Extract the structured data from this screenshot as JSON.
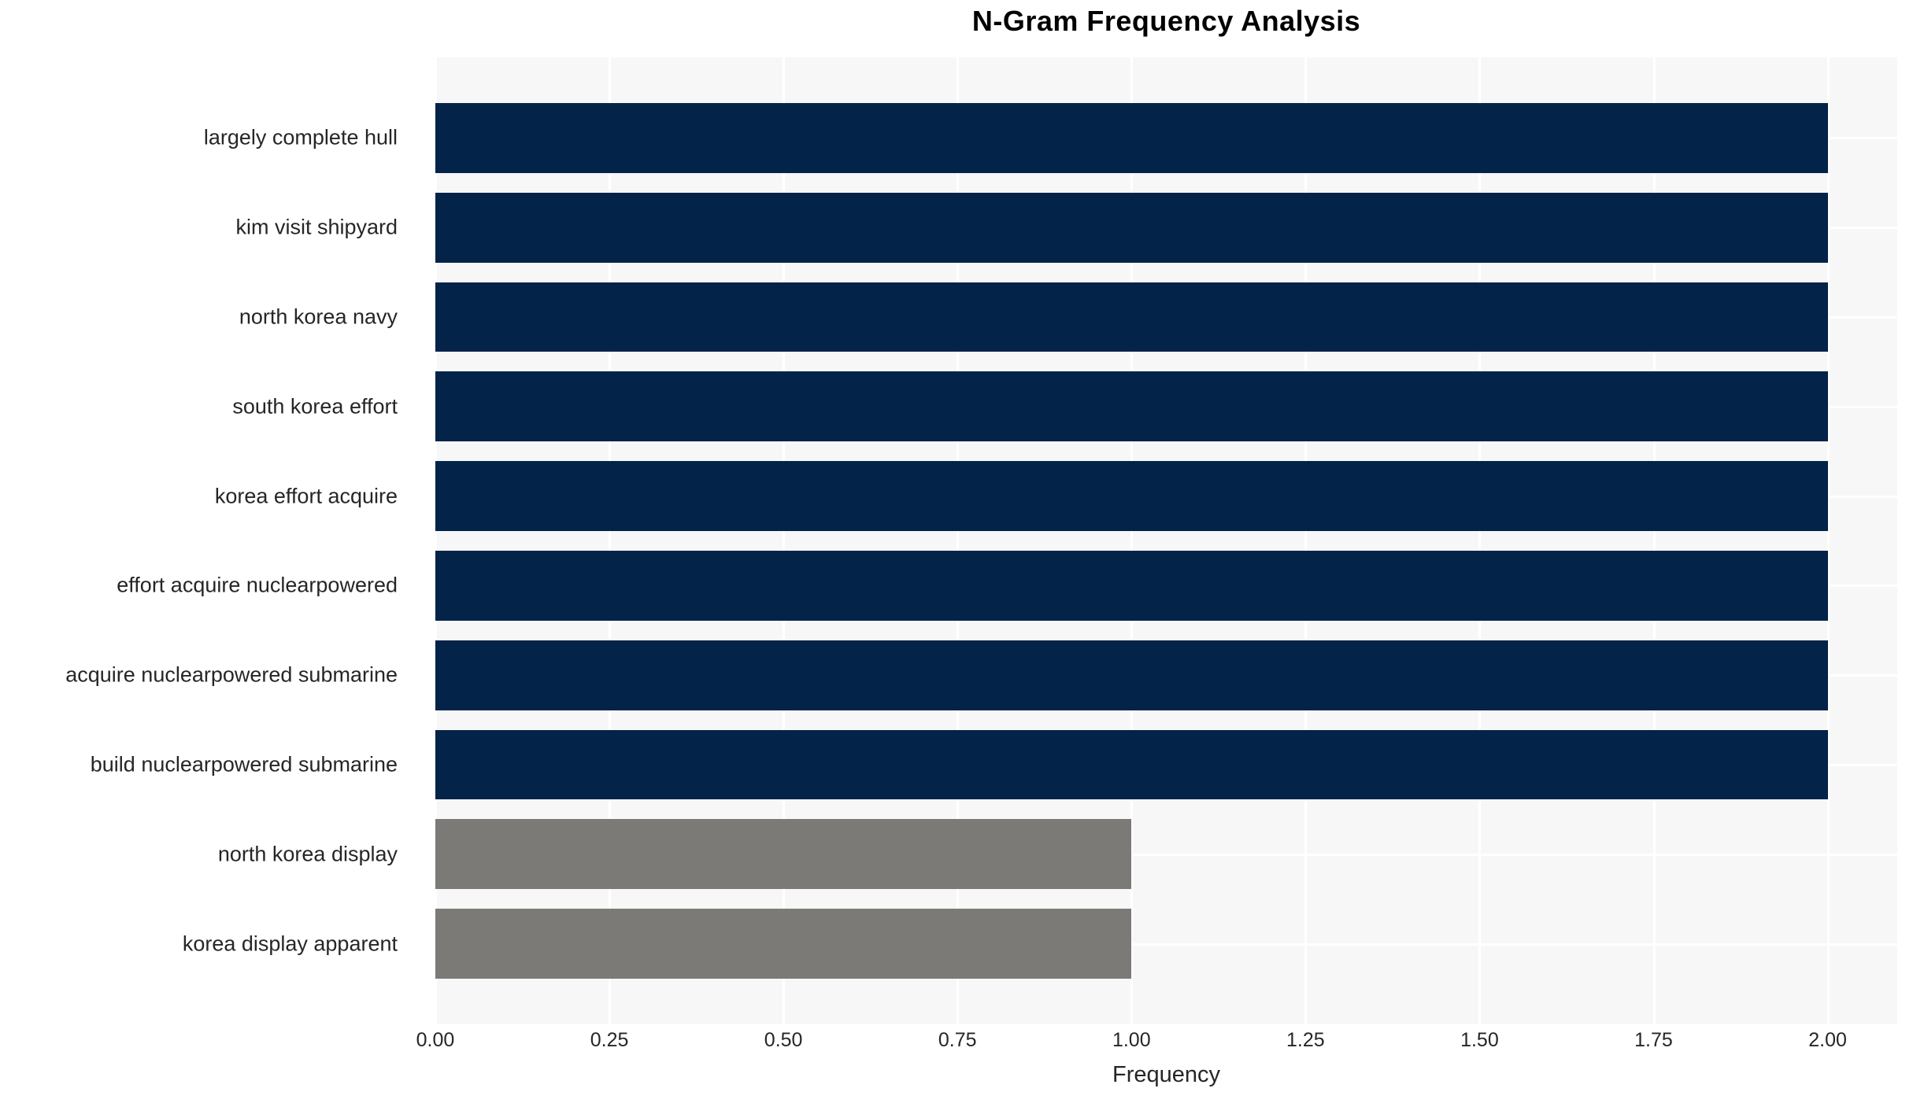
{
  "chart_data": {
    "type": "bar",
    "orientation": "horizontal",
    "title": "N-Gram Frequency Analysis",
    "xlabel": "Frequency",
    "ylabel": "",
    "categories": [
      "largely complete hull",
      "kim visit shipyard",
      "north korea navy",
      "south korea effort",
      "korea effort acquire",
      "effort acquire nuclearpowered",
      "acquire nuclearpowered submarine",
      "build nuclearpowered submarine",
      "north korea display",
      "korea display apparent"
    ],
    "values": [
      2.0,
      2.0,
      2.0,
      2.0,
      2.0,
      2.0,
      2.0,
      2.0,
      1.0,
      1.0
    ],
    "bar_colors": [
      "#032349",
      "#032349",
      "#032349",
      "#032349",
      "#032349",
      "#032349",
      "#032349",
      "#032349",
      "#7b7a76",
      "#7b7a76"
    ],
    "xticks": [
      "0.00",
      "0.25",
      "0.50",
      "0.75",
      "1.00",
      "1.25",
      "1.50",
      "1.75",
      "2.00"
    ],
    "xtick_values": [
      0.0,
      0.25,
      0.5,
      0.75,
      1.0,
      1.25,
      1.5,
      1.75,
      2.0
    ],
    "xlim": [
      0.0,
      2.1
    ],
    "grid": true,
    "legend": false,
    "plot_background_color": "#f7f7f7",
    "grid_color": "#ffffff",
    "figure_background_color": "#ffffff",
    "text_color": "#262626"
  }
}
